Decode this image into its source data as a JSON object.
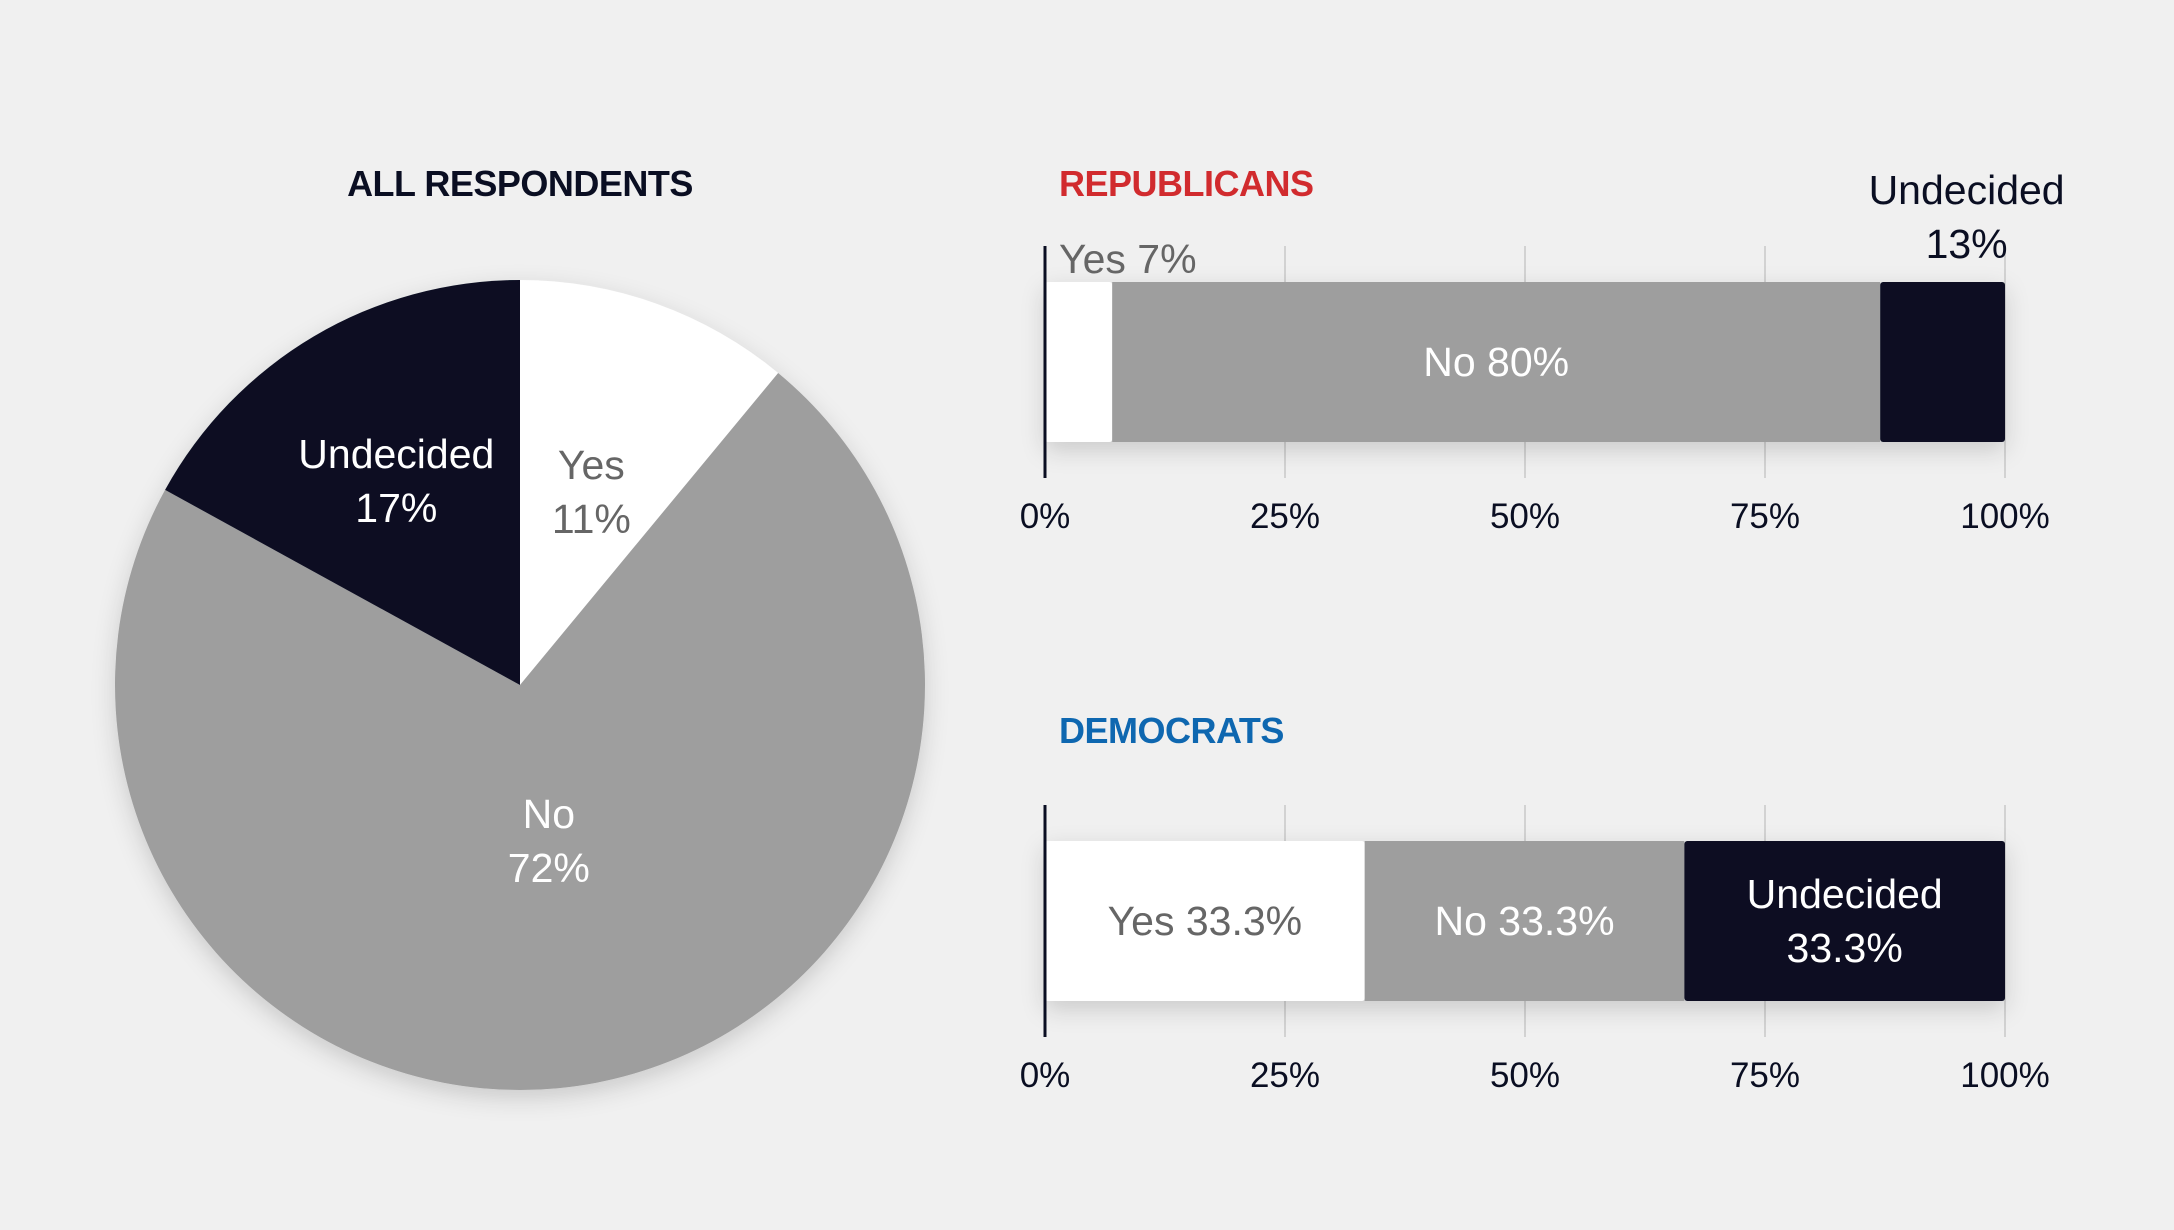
{
  "colors": {
    "background": "#f0f0f0",
    "yes": "#ffffff",
    "no": "#9e9e9e",
    "undecided": "#080d22",
    "grid": "#c8c8c8",
    "axis": "#0a0e22",
    "republicans": "#d12b2e",
    "democrats": "#0e67b0",
    "title_dark": "#0a0e22",
    "label_dark_on_light": "#666666",
    "label_light_on_dark": "#ffffff"
  },
  "chart_data": [
    {
      "type": "pie",
      "title": "ALL RESPONDENTS",
      "slices": [
        {
          "name": "Yes",
          "value": 11,
          "label": "11%",
          "color": "#ffffff",
          "text_color": "#666666"
        },
        {
          "name": "No",
          "value": 72,
          "label": "72%",
          "color": "#9e9e9e",
          "text_color": "#ffffff"
        },
        {
          "name": "Undecided",
          "value": 17,
          "label": "17%",
          "color": "#080d22",
          "text_color": "#ffffff"
        }
      ]
    },
    {
      "type": "bar",
      "orientation": "horizontal",
      "stacked": true,
      "title": "REPUBLICANS",
      "title_color": "#d12b2e",
      "xlim": [
        0,
        100
      ],
      "ticks": [
        "0%",
        "25%",
        "50%",
        "75%",
        "100%"
      ],
      "grid": true,
      "series": [
        {
          "name": "Yes",
          "value": 7,
          "label": "Yes 7%",
          "label_position": "above",
          "color": "#ffffff",
          "text_color": "#666666"
        },
        {
          "name": "No",
          "value": 80,
          "label": "No 80%",
          "label_position": "inside",
          "color": "#9e9e9e",
          "text_color": "#ffffff"
        },
        {
          "name": "Undecided",
          "value": 13,
          "label": "Undecided 13%",
          "label_lines": [
            "Undecided",
            "13%"
          ],
          "label_position": "above",
          "color": "#080d22",
          "text_color": "#0a0e22"
        }
      ]
    },
    {
      "type": "bar",
      "orientation": "horizontal",
      "stacked": true,
      "title": "DEMOCRATS",
      "title_color": "#0e67b0",
      "xlim": [
        0,
        100
      ],
      "ticks": [
        "0%",
        "25%",
        "50%",
        "75%",
        "100%"
      ],
      "grid": true,
      "series": [
        {
          "name": "Yes",
          "value": 33.3,
          "label": "Yes 33.3%",
          "label_position": "inside",
          "color": "#ffffff",
          "text_color": "#666666"
        },
        {
          "name": "No",
          "value": 33.3,
          "label": "No 33.3%",
          "label_position": "inside",
          "color": "#9e9e9e",
          "text_color": "#ffffff"
        },
        {
          "name": "Undecided",
          "value": 33.3,
          "label": "Undecided 33.3%",
          "label_lines": [
            "Undecided",
            "33.3%"
          ],
          "label_position": "inside",
          "color": "#080d22",
          "text_color": "#ffffff"
        }
      ]
    }
  ]
}
